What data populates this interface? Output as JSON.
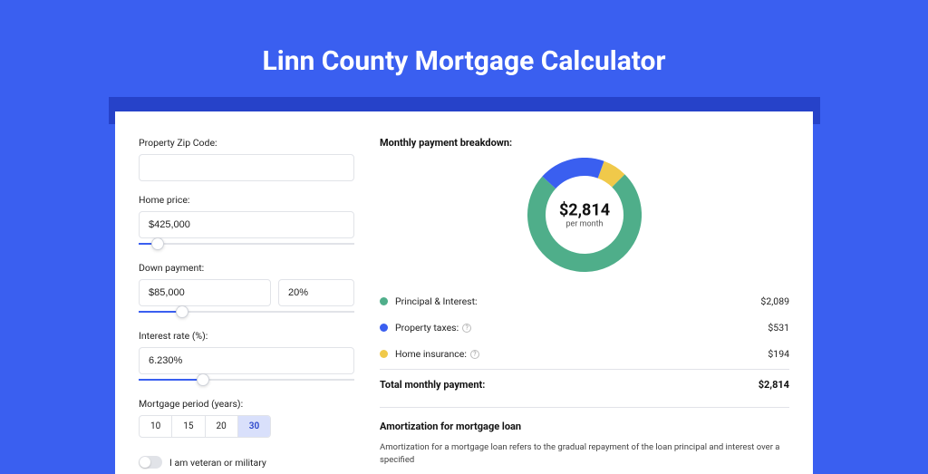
{
  "page": {
    "title": "Linn County Mortgage Calculator",
    "background_color": "#3a5ff0",
    "band_color": "#2642c9",
    "panel_color": "#ffffff"
  },
  "form": {
    "zip_label": "Property Zip Code:",
    "zip_value": "",
    "home_price_label": "Home price:",
    "home_price_value": "$425,000",
    "home_price_slider_pct": 9,
    "down_payment_label": "Down payment:",
    "down_payment_value": "$85,000",
    "down_payment_pct": "20%",
    "down_payment_slider_pct": 20,
    "interest_label": "Interest rate (%):",
    "interest_value": "6.230%",
    "interest_slider_pct": 30,
    "period_label": "Mortgage period (years):",
    "periods": [
      "10",
      "15",
      "20",
      "30"
    ],
    "period_active_index": 3,
    "veteran_label": "I am veteran or military",
    "veteran_on": false
  },
  "breakdown": {
    "title": "Monthly payment breakdown:",
    "center_amount": "$2,814",
    "center_sub": "per month",
    "donut": {
      "size": 126,
      "stroke": 20,
      "slices": [
        {
          "label": "Principal & Interest:",
          "value": "$2,089",
          "color": "#4fae8a",
          "pct": 74.2,
          "has_info": false
        },
        {
          "label": "Property taxes:",
          "value": "$531",
          "color": "#3a5ff0",
          "pct": 18.9,
          "has_info": true
        },
        {
          "label": "Home insurance:",
          "value": "$194",
          "color": "#f0c94a",
          "pct": 6.9,
          "has_info": true
        }
      ]
    },
    "total_label": "Total monthly payment:",
    "total_value": "$2,814"
  },
  "amortization": {
    "title": "Amortization for mortgage loan",
    "text": "Amortization for a mortgage loan refers to the gradual repayment of the loan principal and interest over a specified"
  }
}
